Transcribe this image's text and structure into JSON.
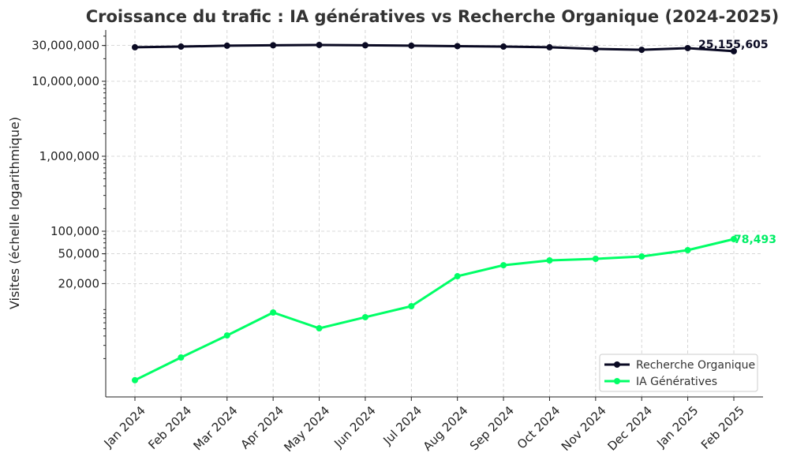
{
  "chart_data": {
    "type": "line",
    "title": "Croissance du trafic : IA génératives vs Recherche Organique (2024-2025)",
    "xlabel": "",
    "ylabel": "Visites (échelle logarithmique)",
    "yscale": "log",
    "ylim": [
      616,
      48300000
    ],
    "grid": true,
    "legend_position": "bottom-right",
    "categories": [
      "Jan 2024",
      "Feb 2024",
      "Mar 2024",
      "Apr 2024",
      "May 2024",
      "Jun 2024",
      "Jul 2024",
      "Aug 2024",
      "Sep 2024",
      "Oct 2024",
      "Nov 2024",
      "Dec 2024",
      "Jan 2025",
      "Feb 2025"
    ],
    "yticks": [
      {
        "value": 20000,
        "label": "20,000"
      },
      {
        "value": 50000,
        "label": "50,000"
      },
      {
        "value": 100000,
        "label": "100,000"
      },
      {
        "value": 1000000,
        "label": "1,000,000"
      },
      {
        "value": 10000000,
        "label": "10,000,000"
      },
      {
        "value": 30000000,
        "label": "30,000,000"
      }
    ],
    "series": [
      {
        "name": "Recherche Organique",
        "color": "#0a0a23",
        "values": [
          28400000,
          29000000,
          29800000,
          30200000,
          30500000,
          30200000,
          29800000,
          29400000,
          29000000,
          28400000,
          27000000,
          26300000,
          27700000,
          25155605
        ],
        "end_label": "25,155,605"
      },
      {
        "name": "IA Génératives",
        "color": "#00ff66",
        "values": [
          1030,
          2070,
          4070,
          8240,
          5070,
          7130,
          10000,
          25100,
          35200,
          40800,
          42800,
          46000,
          55900,
          78493
        ],
        "end_label": "78,493"
      }
    ]
  }
}
